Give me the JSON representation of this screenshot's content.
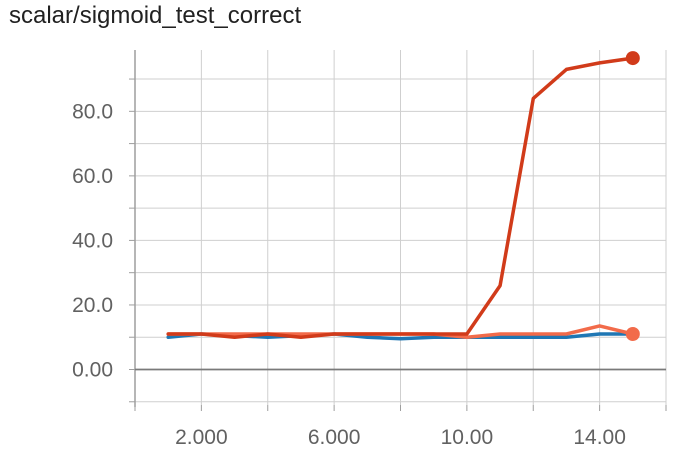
{
  "chart_data": {
    "type": "line",
    "title": "scalar/sigmoid_test_correct",
    "xlabel": "",
    "ylabel": "",
    "xlim": [
      0,
      16
    ],
    "ylim": [
      -11,
      99
    ],
    "x_ticks": [
      2,
      6,
      10,
      14
    ],
    "x_tick_labels": [
      "2.000",
      "6.000",
      "10.00",
      "14.00"
    ],
    "y_ticks": [
      0,
      20,
      40,
      60,
      80
    ],
    "y_tick_labels": [
      "0.00",
      "20.0",
      "40.0",
      "60.0",
      "80.0"
    ],
    "grid": true,
    "legend": "none",
    "series": [
      {
        "color": "#1f77b4",
        "x": [
          1,
          2,
          3,
          4,
          5,
          6,
          7,
          8,
          9,
          10,
          11,
          12,
          13,
          14,
          15
        ],
        "values": [
          10,
          11,
          10.5,
          10,
          10.5,
          11,
          10,
          9.5,
          10,
          10,
          10,
          10,
          10,
          11,
          11
        ]
      },
      {
        "color": "#f26b4a",
        "x": [
          1,
          2,
          3,
          4,
          5,
          6,
          7,
          8,
          9,
          10,
          11,
          12,
          13,
          14,
          15
        ],
        "values": [
          11,
          11,
          11,
          11,
          11,
          11,
          11,
          11,
          11,
          10,
          11,
          11,
          11,
          13.5,
          11
        ]
      },
      {
        "color": "#d13b1a",
        "x": [
          1,
          2,
          3,
          4,
          5,
          6,
          7,
          8,
          9,
          10,
          11,
          12,
          13,
          14,
          15
        ],
        "values": [
          11,
          11,
          10,
          11,
          10,
          11,
          11,
          11,
          11,
          11,
          26,
          84,
          93,
          95,
          96.5
        ]
      }
    ]
  }
}
